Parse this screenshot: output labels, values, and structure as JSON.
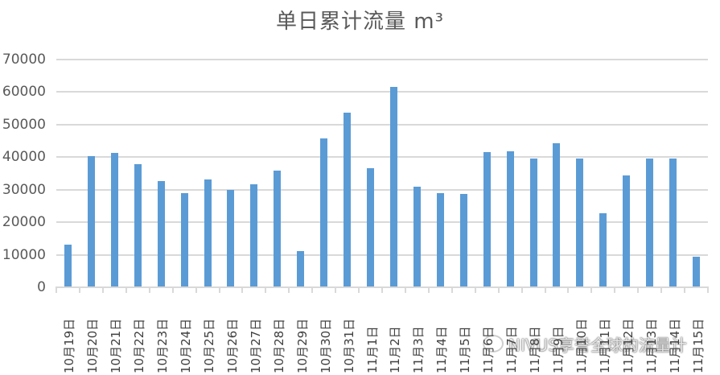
{
  "chart_data": {
    "type": "bar",
    "title": "单日累计流量 m³",
    "xlabel": "",
    "ylabel": "",
    "ylim": [
      0,
      70000
    ],
    "yticks": [
      0,
      10000,
      20000,
      30000,
      40000,
      50000,
      60000,
      70000
    ],
    "grid": true,
    "legend": null,
    "bar_color": "#5b9bd5",
    "categories": [
      "10月19日",
      "10月20日",
      "10月21日",
      "10月22日",
      "10月23日",
      "10月24日",
      "10月25日",
      "10月26日",
      "10月27日",
      "10月28日",
      "10月29日",
      "10月30日",
      "10月31日",
      "11月1日",
      "11月2日",
      "11月3日",
      "11月4日",
      "11月5日",
      "11月6日",
      "11月7日",
      "11月8日",
      "11月9日",
      "11月10日",
      "11月11日",
      "11月12日",
      "11月13日",
      "11月14日",
      "11月15日"
    ],
    "values": [
      13100,
      40200,
      41200,
      37800,
      32600,
      28900,
      33100,
      29900,
      31600,
      35800,
      11100,
      45700,
      53800,
      36500,
      61500,
      30900,
      28900,
      28600,
      41500,
      41700,
      39500,
      44200,
      39500,
      22700,
      34300,
      39500,
      39500,
      9400
    ]
  },
  "watermark": {
    "text": "NIVUS享誉全球的流量计",
    "icon": "wechat-icon"
  }
}
